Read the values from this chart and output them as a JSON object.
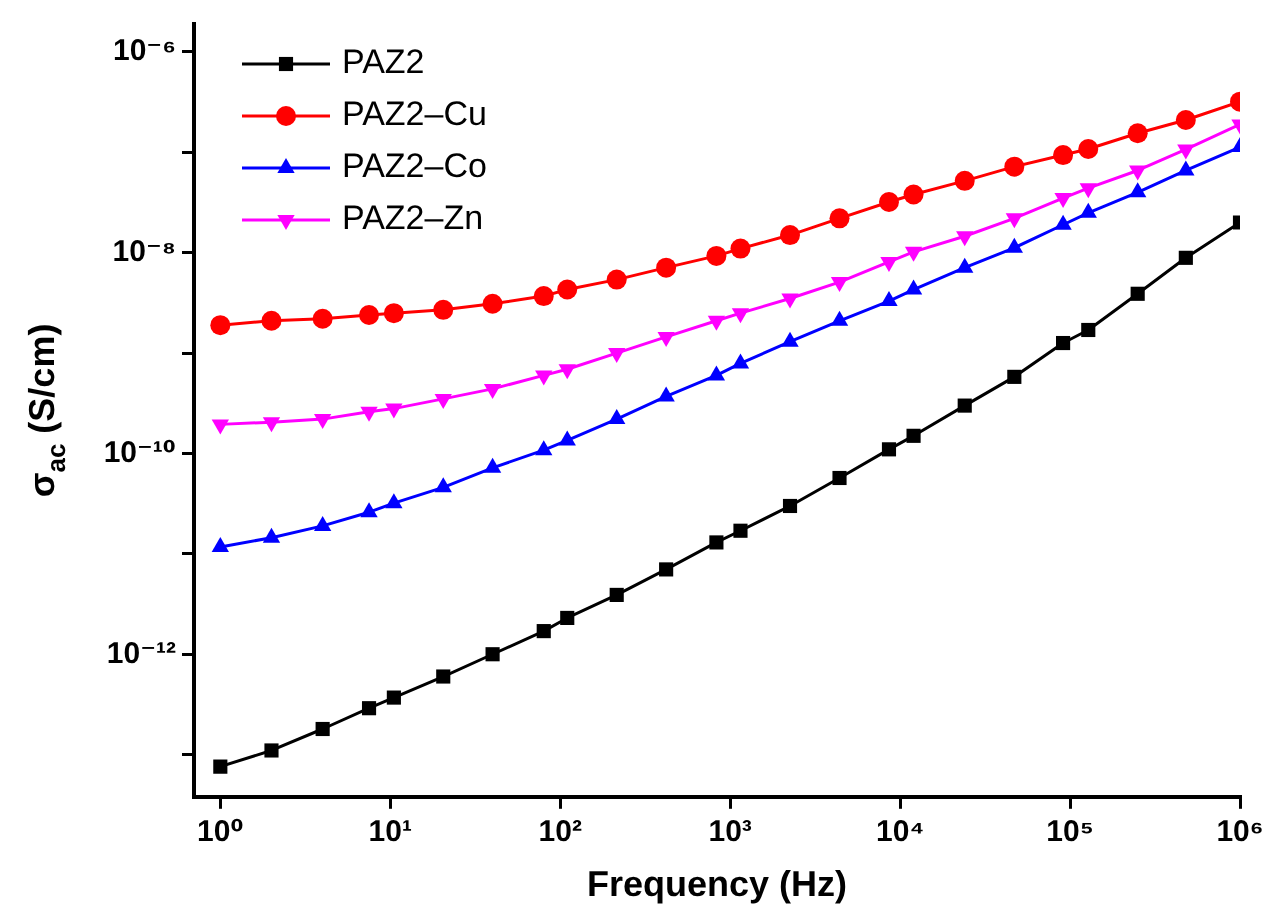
{
  "chart_data": {
    "type": "line",
    "xlabel": "Frequency (Hz)",
    "ylabel": "σ$_{ac}$ (S/cm)",
    "log": "xy",
    "grid": false,
    "legend": "top left",
    "line_style": "solid",
    "x": [
      1,
      2,
      4,
      7.5,
      10.5,
      20.5,
      40,
      80,
      110,
      215,
      420,
      830,
      1150,
      2250,
      4400,
      8600,
      12000,
      24000,
      47000,
      91000,
      128000,
      250000,
      480000,
      1000000
    ],
    "xlim": [
      0.7,
      1000000
    ],
    "xticks": [
      {
        "value": 1,
        "label": "10⁰"
      },
      {
        "value": 10,
        "label": "10¹"
      },
      {
        "value": 100,
        "label": "10²"
      },
      {
        "value": 1000,
        "label": "10³"
      },
      {
        "value": 10000,
        "label": "10⁴"
      },
      {
        "value": 100000,
        "label": "10⁵"
      },
      {
        "value": 1000000,
        "label": "10⁶"
      }
    ],
    "ylim": [
      3.8e-14,
      1.9e-06
    ],
    "yticks": [
      {
        "value": 1e-13,
        "label": null
      },
      {
        "value": 1e-12,
        "label": "10⁻¹²"
      },
      {
        "value": 1e-11,
        "label": null
      },
      {
        "value": 1e-10,
        "label": "10⁻¹⁰"
      },
      {
        "value": 1e-09,
        "label": null
      },
      {
        "value": 1e-08,
        "label": "10⁻⁸"
      },
      {
        "value": 1e-07,
        "label": null
      },
      {
        "value": 1e-06,
        "label": "10⁻⁶"
      }
    ],
    "series": [
      {
        "name": "PAZ2",
        "color": "#000000",
        "marker": "square",
        "values": [
          7.6e-14,
          1.1e-13,
          1.8e-13,
          2.9e-13,
          3.7e-13,
          6e-13,
          1e-12,
          1.7e-12,
          2.3e-12,
          3.9e-12,
          7e-12,
          1.3e-11,
          1.7e-11,
          3e-11,
          5.7e-11,
          1.1e-10,
          1.5e-10,
          3e-10,
          5.8e-10,
          1.26e-09,
          1.7e-09,
          3.9e-09,
          8.9e-09,
          2e-08
        ]
      },
      {
        "name": "PAZ2–Cu",
        "color": "#ff0000",
        "marker": "circle",
        "values": [
          1.9e-09,
          2.1e-09,
          2.2e-09,
          2.4e-09,
          2.5e-09,
          2.7e-09,
          3.1e-09,
          3.7e-09,
          4.3e-09,
          5.4e-09,
          7.1e-09,
          9.3e-09,
          1.1e-08,
          1.5e-08,
          2.2e-08,
          3.2e-08,
          3.8e-08,
          5.2e-08,
          7.2e-08,
          9.4e-08,
          1.08e-07,
          1.55e-07,
          2.1e-07,
          3.2e-07
        ]
      },
      {
        "name": "PAZ2–Co",
        "color": "#0000ff",
        "marker": "triangle",
        "values": [
          1.17e-11,
          1.45e-11,
          1.9e-11,
          2.6e-11,
          3.2e-11,
          4.6e-11,
          7.2e-11,
          1.08e-10,
          1.35e-10,
          2.2e-10,
          3.7e-10,
          6e-10,
          7.9e-10,
          1.3e-09,
          2.1e-09,
          3.3e-09,
          4.3e-09,
          7.1e-09,
          1.12e-08,
          1.9e-08,
          2.5e-08,
          4e-08,
          6.6e-08,
          1.13e-07
        ]
      },
      {
        "name": "PAZ2–Zn",
        "color": "#ff00ff",
        "marker": "triangle_down",
        "values": [
          1.95e-10,
          2.05e-10,
          2.2e-10,
          2.6e-10,
          2.8e-10,
          3.5e-10,
          4.4e-10,
          6e-10,
          6.9e-10,
          1e-09,
          1.45e-09,
          2.1e-09,
          2.5e-09,
          3.5e-09,
          5.1e-09,
          8.1e-09,
          1.02e-08,
          1.46e-08,
          2.2e-08,
          3.5e-08,
          4.4e-08,
          6.6e-08,
          1.07e-07,
          1.9e-07
        ]
      }
    ]
  }
}
